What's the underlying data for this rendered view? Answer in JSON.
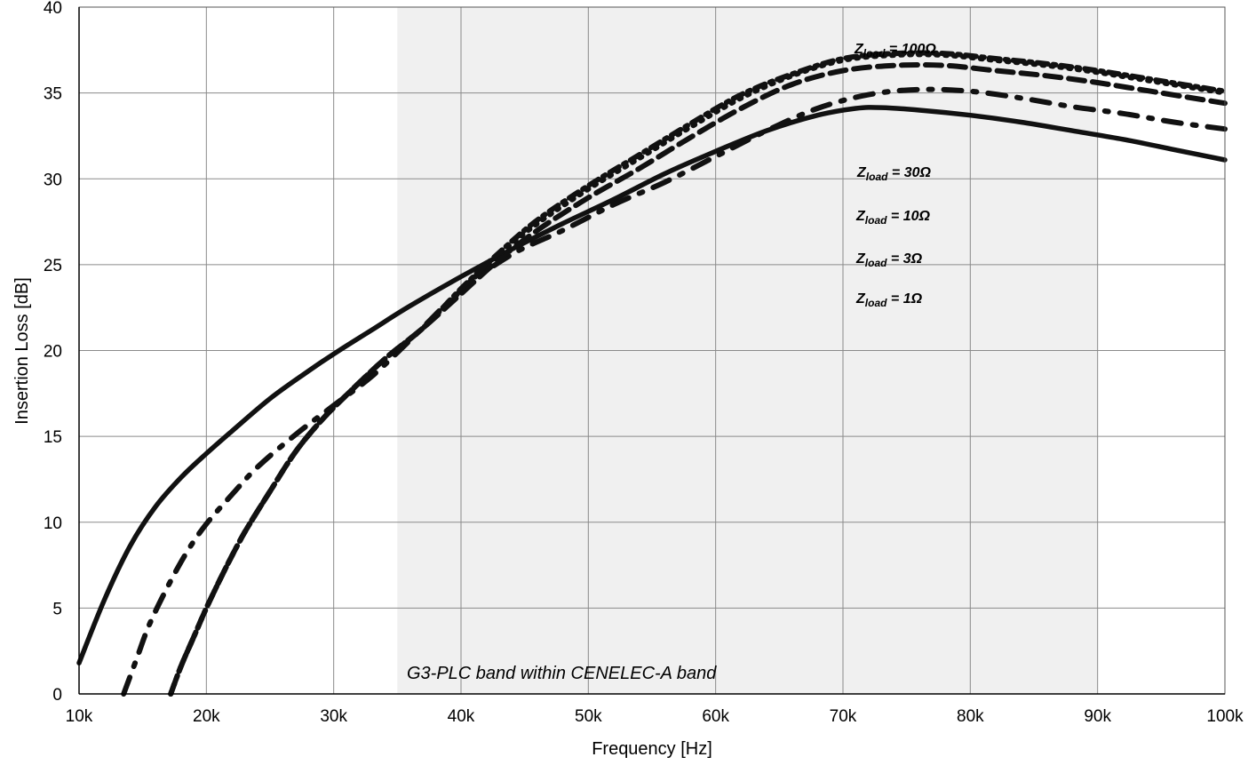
{
  "chart_data": {
    "type": "line",
    "title": "",
    "xlabel": "Frequency [Hz]",
    "ylabel": "Insertion Loss [dB]",
    "xlim": [
      10000,
      100000
    ],
    "ylim": [
      0,
      40
    ],
    "grid": true,
    "x_ticks": [
      10000,
      20000,
      30000,
      40000,
      50000,
      60000,
      70000,
      80000,
      90000,
      100000
    ],
    "x_tick_labels": [
      "10k",
      "20k",
      "30k",
      "40k",
      "50k",
      "60k",
      "70k",
      "80k",
      "90k",
      "100k"
    ],
    "y_ticks": [
      0,
      5,
      10,
      15,
      20,
      25,
      30,
      35,
      40
    ],
    "y_tick_labels": [
      "0",
      "5",
      "10",
      "15",
      "20",
      "25",
      "30",
      "35",
      "40"
    ],
    "shaded_band": {
      "x_range": [
        35000,
        90000
      ],
      "label": "G3-PLC band within CENELEC-A band",
      "color": "#f0f0f0"
    },
    "series": [
      {
        "name_main": "Z",
        "name_sub": "load",
        "name_value": " = 1Ω",
        "style": "solid",
        "color": "#111111",
        "x": [
          10000,
          12000,
          14000,
          16000,
          18000,
          20000,
          22000,
          25000,
          28000,
          30000,
          33000,
          36000,
          40000,
          44000,
          48000,
          52000,
          56000,
          60000,
          64000,
          68000,
          71000,
          73000,
          76000,
          80000,
          84000,
          88000,
          92000,
          96000,
          100000
        ],
        "y": [
          1.8,
          5.5,
          8.6,
          10.9,
          12.6,
          14.0,
          15.3,
          17.2,
          18.8,
          19.8,
          21.2,
          22.6,
          24.3,
          25.9,
          27.4,
          28.8,
          30.3,
          31.6,
          32.8,
          33.7,
          34.1,
          34.15,
          34.0,
          33.7,
          33.3,
          32.8,
          32.3,
          31.7,
          31.1
        ]
      },
      {
        "name_main": "Z",
        "name_sub": "load",
        "name_value": " = 3Ω",
        "style": "dashdot",
        "color": "#111111",
        "x": [
          13500,
          14500,
          15500,
          17000,
          18500,
          20000,
          22000,
          24000,
          27000,
          30000,
          33000,
          36000,
          40000,
          44000,
          48000,
          52000,
          56000,
          60000,
          64000,
          68000,
          72000,
          76000,
          80000,
          84000,
          88000,
          92000,
          96000,
          100000
        ],
        "y": [
          0.0,
          2.0,
          4.0,
          6.3,
          8.3,
          9.9,
          11.6,
          13.2,
          15.1,
          16.8,
          18.5,
          20.6,
          23.5,
          25.6,
          27.0,
          28.5,
          29.8,
          31.3,
          32.8,
          34.1,
          34.9,
          35.2,
          35.1,
          34.7,
          34.2,
          33.8,
          33.3,
          32.9
        ]
      },
      {
        "name_main": "Z",
        "name_sub": "load",
        "name_value": " = 10Ω",
        "style": "dashed",
        "color": "#111111",
        "x": [
          17200,
          18000,
          19000,
          20000,
          21500,
          23000,
          25000,
          27000,
          29000,
          31000,
          34000,
          37000,
          40000,
          43000,
          46000,
          50000,
          54000,
          58000,
          62000,
          66000,
          70000,
          74000,
          78000,
          82000,
          86000,
          90000,
          95000,
          100000
        ],
        "y": [
          0.0,
          1.6,
          3.3,
          5.0,
          7.3,
          9.4,
          11.8,
          14.1,
          15.9,
          17.4,
          19.5,
          21.3,
          23.3,
          25.3,
          27.0,
          28.9,
          30.6,
          32.4,
          34.1,
          35.5,
          36.3,
          36.6,
          36.6,
          36.3,
          36.0,
          35.6,
          35.0,
          34.4
        ]
      },
      {
        "name_main": "Z",
        "name_sub": "load",
        "name_value": " = 30Ω",
        "style": "dotted",
        "color": "#111111",
        "x": [
          17200,
          18000,
          19000,
          20000,
          21500,
          23000,
          25000,
          27000,
          29000,
          31000,
          34000,
          37000,
          40000,
          43000,
          46000,
          50000,
          54000,
          58000,
          62000,
          66000,
          70000,
          74000,
          78000,
          82000,
          86000,
          90000,
          95000,
          100000
        ],
        "y": [
          0.0,
          1.6,
          3.3,
          5.0,
          7.3,
          9.4,
          11.8,
          14.1,
          15.9,
          17.4,
          19.5,
          21.3,
          23.5,
          25.6,
          27.4,
          29.4,
          31.2,
          33.0,
          34.7,
          36.0,
          36.9,
          37.2,
          37.2,
          36.9,
          36.6,
          36.2,
          35.6,
          35.0
        ]
      },
      {
        "name_main": "Z",
        "name_sub": "load",
        "name_value": " = 100Ω",
        "style": "dashdot-dense",
        "color": "#111111",
        "x": [
          17200,
          18000,
          19000,
          20000,
          21500,
          23000,
          25000,
          27000,
          29000,
          31000,
          34000,
          37000,
          40000,
          43000,
          46000,
          50000,
          54000,
          58000,
          62000,
          66000,
          70000,
          74000,
          78000,
          82000,
          86000,
          90000,
          95000,
          100000
        ],
        "y": [
          0.0,
          1.6,
          3.3,
          5.0,
          7.3,
          9.4,
          11.8,
          14.1,
          15.9,
          17.4,
          19.5,
          21.3,
          23.6,
          25.7,
          27.6,
          29.6,
          31.4,
          33.2,
          34.9,
          36.1,
          37.0,
          37.3,
          37.3,
          37.0,
          36.7,
          36.3,
          35.7,
          35.1
        ]
      }
    ]
  }
}
